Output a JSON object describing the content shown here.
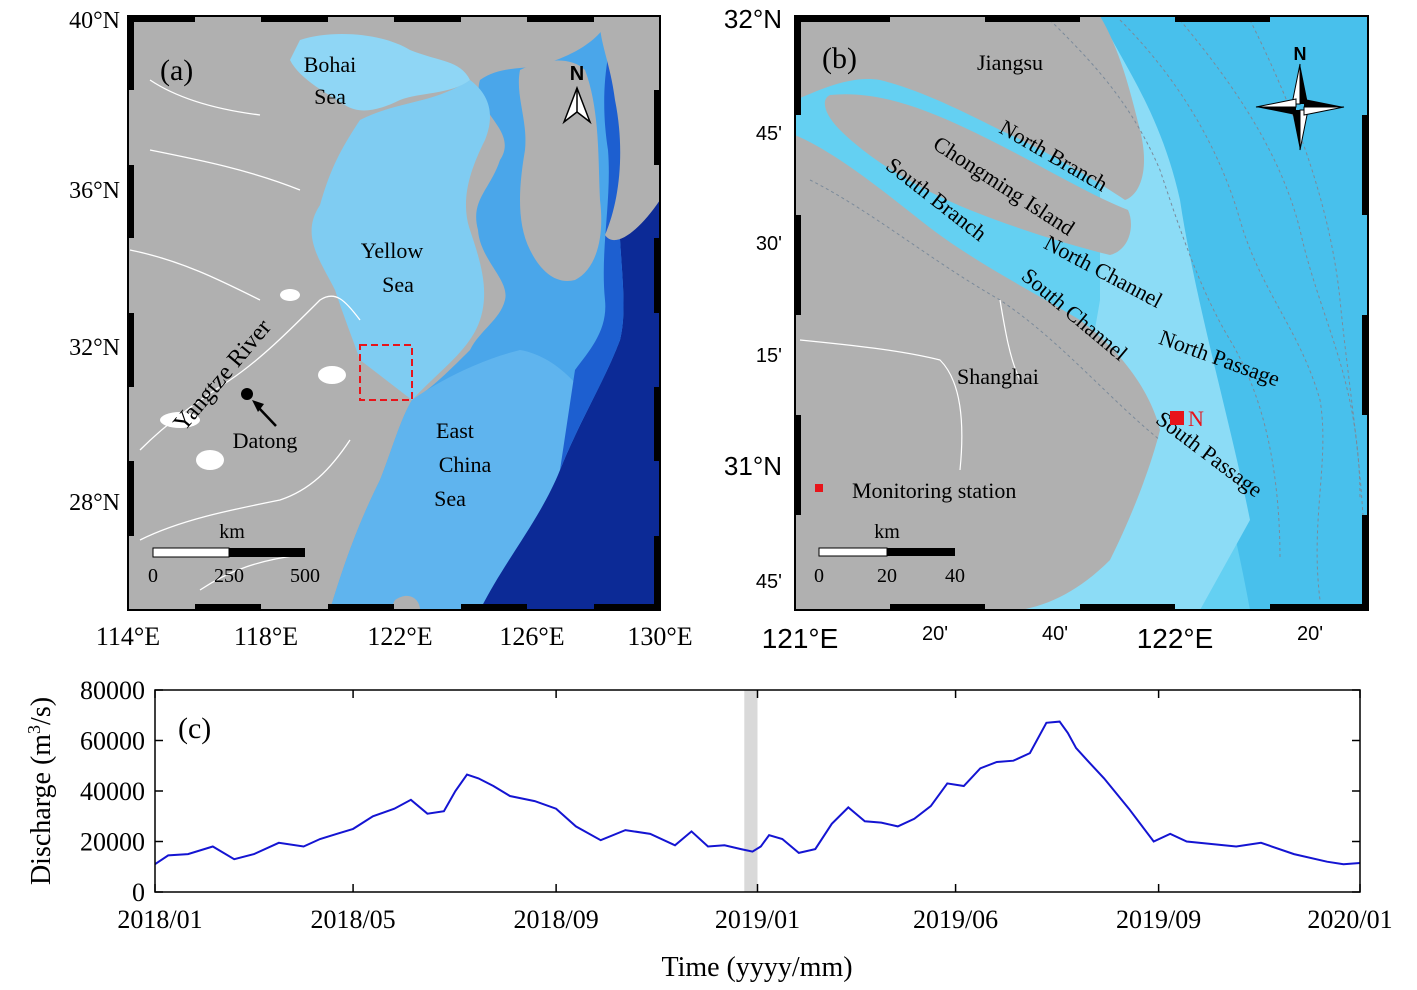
{
  "panel_a": {
    "label": "(a)",
    "lat_labels": [
      "40°N",
      "36°N",
      "32°N",
      "28°N"
    ],
    "lon_labels": [
      "114°E",
      "118°E",
      "122°E",
      "126°E",
      "130°E"
    ],
    "place_labels": {
      "bohai_1": "Bohai",
      "bohai_2": "Sea",
      "yellow_1": "Yellow",
      "yellow_2": "Sea",
      "ecs_1": "East",
      "ecs_2": "China",
      "ecs_3": "Sea",
      "river": "Yangtze River",
      "datong": "Datong"
    },
    "north_arrow": "N",
    "scale": {
      "unit": "km",
      "ticks": [
        "0",
        "250",
        "500"
      ]
    }
  },
  "panel_b": {
    "label": "(b)",
    "lat_labels": [
      "32°N",
      "45'",
      "30'",
      "15'",
      "31°N",
      "45'"
    ],
    "lon_labels": [
      "121°E",
      "20'",
      "40'",
      "122°E",
      "20'"
    ],
    "place_labels": {
      "jiangsu": "Jiangsu",
      "north_branch": "North Branch",
      "chongming": "Chongming Island",
      "south_branch": "South Branch",
      "north_channel": "North Channel",
      "south_channel": "South Channel",
      "north_passage": "North Passage",
      "south_passage": "South Passage",
      "shanghai": "Shanghai",
      "station": "N"
    },
    "legend": "Monitoring station",
    "compass": "N",
    "scale": {
      "unit": "km",
      "ticks": [
        "0",
        "20",
        "40"
      ]
    },
    "colors": {
      "station": "#e8141a"
    }
  },
  "chart_data": {
    "type": "line",
    "label": "(c)",
    "xlabel": "Time (yyyy/mm)",
    "ylabel": "Discharge (m³/s)",
    "ylabel_parts": {
      "pre": "Discharge (m",
      "sup": "3",
      "post": "/s)"
    },
    "ylim": [
      0,
      80000
    ],
    "yticks": [
      "0",
      "20000",
      "40000",
      "60000",
      "80000"
    ],
    "xlim_days": [
      0,
      730
    ],
    "xtick_labels": [
      "2018/01",
      "2018/05",
      "2018/09",
      "2019/01",
      "2019/06",
      "2019/09",
      "2020/01"
    ],
    "xtick_days": [
      0,
      120,
      243,
      365,
      485,
      608,
      730
    ],
    "highlight_days": [
      357,
      365
    ],
    "series": [
      {
        "name": "Discharge",
        "color": "#1414d2",
        "x_days": [
          0,
          8,
          20,
          35,
          48,
          60,
          75,
          90,
          100,
          110,
          120,
          132,
          145,
          155,
          165,
          175,
          182,
          189,
          196,
          205,
          215,
          230,
          243,
          255,
          270,
          285,
          300,
          315,
          325,
          335,
          345,
          355,
          362,
          367,
          372,
          380,
          390,
          400,
          410,
          420,
          430,
          440,
          450,
          460,
          470,
          480,
          490,
          500,
          510,
          520,
          530,
          540,
          548,
          553,
          558,
          565,
          575,
          590,
          605,
          615,
          625,
          640,
          655,
          670,
          690,
          710,
          720,
          730
        ],
        "values": [
          11000,
          14500,
          15000,
          18000,
          13000,
          15000,
          19500,
          18000,
          21000,
          23000,
          25000,
          30000,
          33000,
          36500,
          31000,
          32000,
          40000,
          46500,
          45000,
          42000,
          38000,
          36000,
          33000,
          26000,
          20500,
          24500,
          23000,
          18500,
          24000,
          18000,
          18500,
          17000,
          16000,
          18000,
          22500,
          21000,
          15500,
          17000,
          27000,
          33500,
          28000,
          27500,
          26000,
          29000,
          34000,
          43000,
          42000,
          49000,
          51500,
          52000,
          55000,
          67000,
          67500,
          63000,
          57000,
          52000,
          45000,
          33000,
          20000,
          23000,
          20000,
          19000,
          18000,
          19500,
          15000,
          12000,
          11000,
          11500
        ]
      }
    ]
  }
}
